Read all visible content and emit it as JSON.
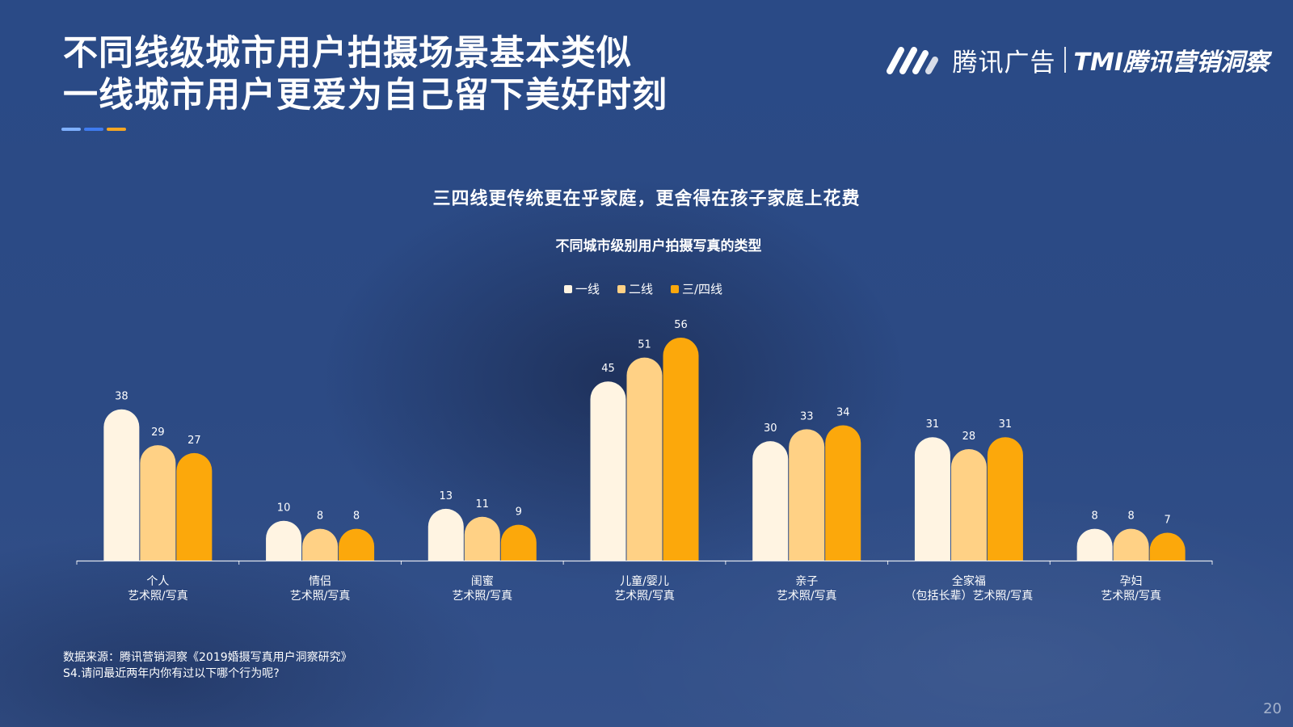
{
  "page": {
    "title_line1": "不同线级城市用户拍摄场景基本类似",
    "title_line2": "一线城市用户更爱为自己留下美好时刻",
    "accent_colors": [
      "#7fb0ff",
      "#3f7bf0",
      "#f5a623"
    ],
    "brand": {
      "name": "腾讯广告",
      "tmi": "TMI腾讯营销洞察",
      "logo_icon": "tencent-ads-logo-icon"
    },
    "subtitle": "三四线更传统更在乎家庭，更舍得在孩子家庭上花费",
    "source_line1": "数据来源：腾讯营销洞察《2019婚摄写真用户洞察研究》",
    "source_line2": "S4.请问最近两年内你有过以下哪个行为呢?",
    "page_number": "20"
  },
  "chart_data": {
    "type": "bar",
    "title": "不同城市级别用户拍摄写真的类型",
    "legend_position": "top-center",
    "grid": false,
    "ylim": [
      0,
      60
    ],
    "categories": [
      [
        "个人",
        "艺术照/写真"
      ],
      [
        "情侣",
        "艺术照/写真"
      ],
      [
        "闺蜜",
        "艺术照/写真"
      ],
      [
        "儿童/婴儿",
        "艺术照/写真"
      ],
      [
        "亲子",
        "艺术照/写真"
      ],
      [
        "全家福",
        "（包括长辈）艺术照/写真"
      ],
      [
        "孕妇",
        "艺术照/写真"
      ]
    ],
    "series": [
      {
        "name": "一线",
        "color": "#fff4e2",
        "values": [
          38,
          10,
          13,
          45,
          30,
          31,
          8
        ]
      },
      {
        "name": "二线",
        "color": "#ffd185",
        "values": [
          29,
          8,
          11,
          51,
          33,
          28,
          8
        ]
      },
      {
        "name": "三/四线",
        "color": "#fca80b",
        "values": [
          27,
          8,
          9,
          56,
          34,
          31,
          7
        ]
      }
    ]
  }
}
